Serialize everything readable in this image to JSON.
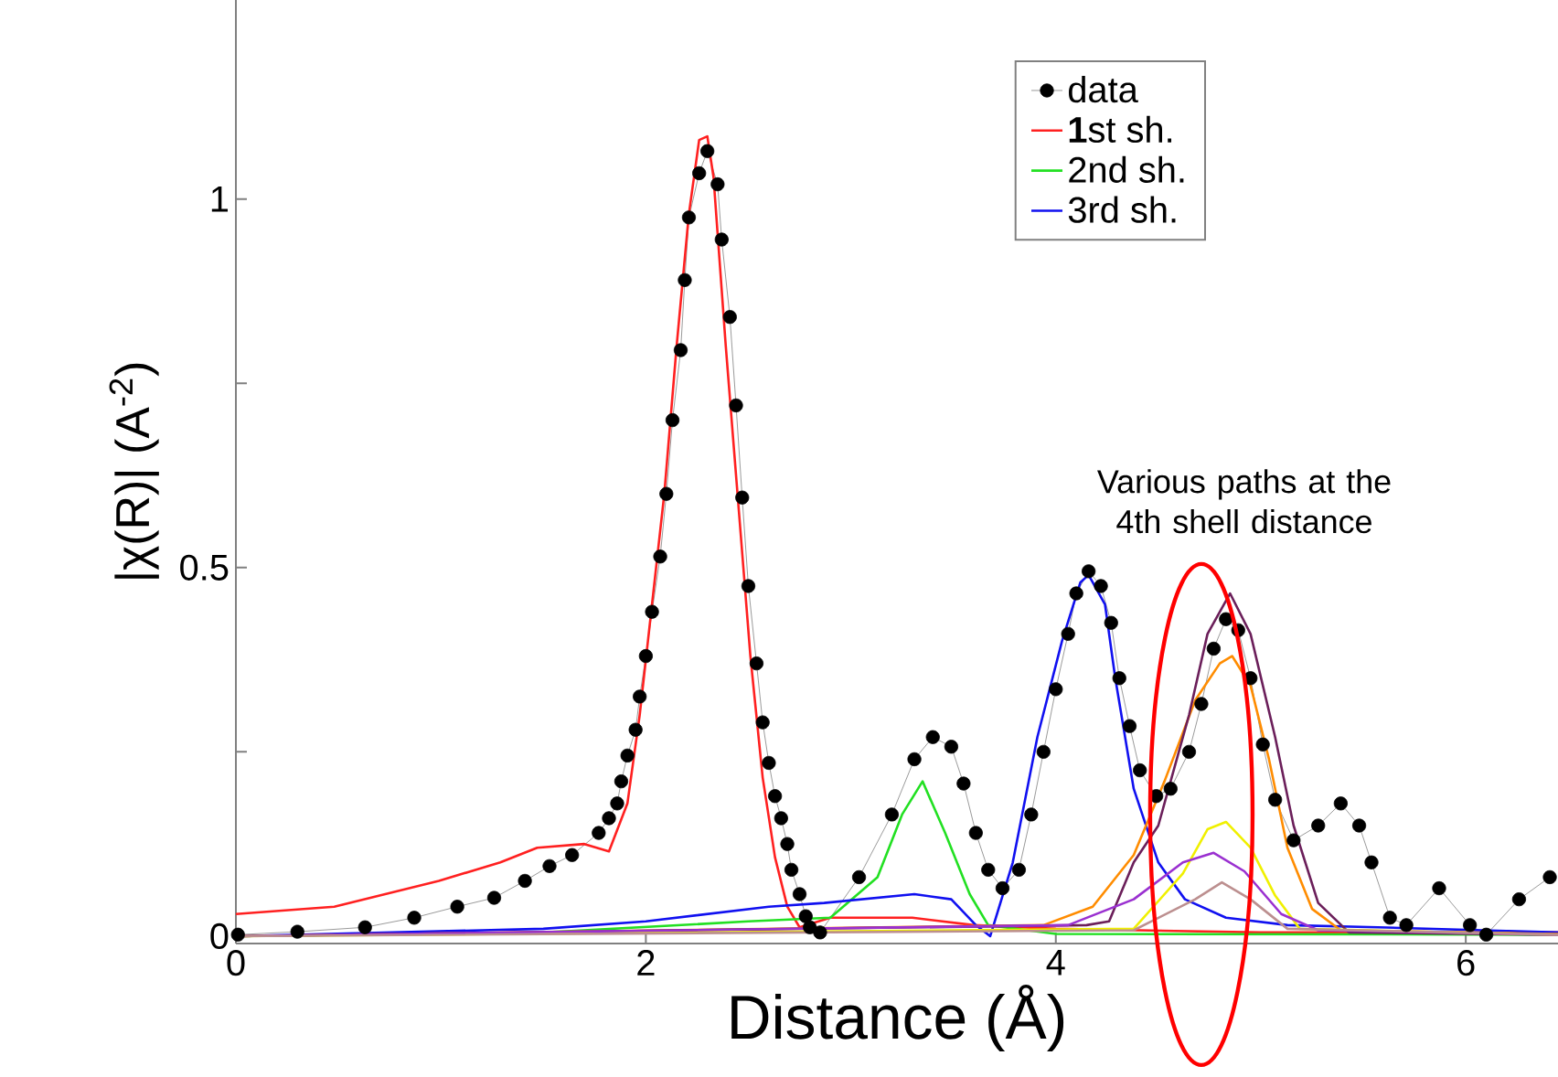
{
  "chart_data": {
    "type": "line",
    "xlabel": "Distance (Å)",
    "ylabel": "|χ(R)|  (A$^{-2}$)",
    "xlim": [
      0,
      6.45
    ],
    "ylim": [
      -0.01,
      1.27
    ],
    "xticks": [
      0,
      2,
      4,
      6
    ],
    "yticks": [
      0,
      {
        "value": 0.25,
        "label": null
      },
      0.5,
      {
        "value": 0.75,
        "label": null
      },
      1
    ],
    "legend": "top right",
    "annotations": [
      "Various paths at the 4th shell distance"
    ],
    "series": [
      {
        "name": "data",
        "color": "#000000",
        "marker": "circle",
        "x": [
          0.01,
          0.3,
          0.63,
          0.87,
          1.08,
          1.26,
          1.41,
          1.53,
          1.64,
          1.77,
          1.82,
          1.86,
          1.88,
          1.91,
          1.95,
          1.97,
          2.0,
          2.03,
          2.07,
          2.1,
          2.13,
          2.17,
          2.19,
          2.21,
          2.26,
          2.3,
          2.35,
          2.37,
          2.41,
          2.44,
          2.47,
          2.5,
          2.54,
          2.57,
          2.6,
          2.63,
          2.66,
          2.69,
          2.71,
          2.75,
          2.78,
          2.8,
          2.85,
          3.04,
          3.2,
          3.31,
          3.4,
          3.49,
          3.55,
          3.61,
          3.67,
          3.74,
          3.82,
          3.88,
          3.94,
          4.0,
          4.06,
          4.1,
          4.16,
          4.22,
          4.27,
          4.31,
          4.36,
          4.41,
          4.49,
          4.56,
          4.65,
          4.71,
          4.77,
          4.83,
          4.89,
          4.95,
          5.01,
          5.07,
          5.16,
          5.28,
          5.39,
          5.48,
          5.54,
          5.63,
          5.71,
          5.87,
          6.02,
          6.1,
          6.26,
          6.41
        ],
        "values": [
          0.002,
          0.006,
          0.012,
          0.025,
          0.04,
          0.052,
          0.075,
          0.095,
          0.11,
          0.14,
          0.16,
          0.18,
          0.21,
          0.245,
          0.28,
          0.325,
          0.38,
          0.44,
          0.515,
          0.6,
          0.7,
          0.795,
          0.89,
          0.975,
          1.035,
          1.065,
          1.02,
          0.945,
          0.84,
          0.72,
          0.595,
          0.475,
          0.37,
          0.29,
          0.235,
          0.19,
          0.16,
          0.125,
          0.09,
          0.057,
          0.027,
          0.012,
          0.005,
          0.08,
          0.165,
          0.24,
          0.27,
          0.257,
          0.207,
          0.14,
          0.09,
          0.065,
          0.09,
          0.165,
          0.25,
          0.335,
          0.41,
          0.465,
          0.495,
          0.475,
          0.425,
          0.35,
          0.285,
          0.225,
          0.19,
          0.2,
          0.25,
          0.315,
          0.39,
          0.43,
          0.415,
          0.35,
          0.26,
          0.185,
          0.13,
          0.15,
          0.18,
          0.15,
          0.1,
          0.025,
          0.015,
          0.065,
          0.015,
          0.002,
          0.05,
          0.08
        ]
      },
      {
        "name": "**1**st sh.",
        "color": "#ff2020",
        "x": [
          0,
          0.48,
          0.99,
          1.29,
          1.47,
          1.7,
          1.82,
          1.91,
          1.97,
          2.03,
          2.09,
          2.15,
          2.21,
          2.26,
          2.3,
          2.33,
          2.39,
          2.45,
          2.51,
          2.57,
          2.63,
          2.69,
          2.75,
          2.9,
          3.3,
          3.6,
          4.0,
          5.0,
          6.45
        ],
        "values": [
          0.03,
          0.04,
          0.075,
          0.1,
          0.12,
          0.125,
          0.115,
          0.18,
          0.3,
          0.45,
          0.6,
          0.8,
          0.98,
          1.08,
          1.085,
          1.03,
          0.8,
          0.59,
          0.38,
          0.215,
          0.107,
          0.04,
          0.012,
          0.025,
          0.025,
          0.015,
          0.01,
          0.005,
          0.005
        ]
      },
      {
        "name": "2nd sh.",
        "color": "#22e022",
        "x": [
          0,
          1.5,
          2.5,
          2.9,
          3.13,
          3.25,
          3.35,
          3.46,
          3.58,
          3.67,
          4.0,
          6.45
        ],
        "values": [
          0,
          0.005,
          0.02,
          0.025,
          0.08,
          0.165,
          0.21,
          0.14,
          0.057,
          0.015,
          0.003,
          0.002
        ]
      },
      {
        "name": "3rd sh.",
        "color": "#1010f0",
        "x": [
          0,
          1.5,
          2.0,
          2.6,
          2.87,
          3.31,
          3.49,
          3.61,
          3.68,
          3.79,
          3.91,
          4.03,
          4.12,
          4.16,
          4.24,
          4.29,
          4.38,
          4.5,
          4.63,
          4.83,
          5.13,
          5.57,
          6.45
        ],
        "values": [
          0,
          0.01,
          0.02,
          0.04,
          0.045,
          0.057,
          0.05,
          0.015,
          0.0,
          0.1,
          0.27,
          0.4,
          0.48,
          0.49,
          0.45,
          0.35,
          0.2,
          0.1,
          0.05,
          0.025,
          0.015,
          0.012,
          0.005
        ]
      },
      {
        "color": "#ff8c00",
        "x": [
          0,
          3.94,
          4.18,
          4.38,
          4.53,
          4.68,
          4.8,
          4.86,
          4.95,
          5.04,
          5.13,
          5.25,
          5.39,
          6.45
        ],
        "values": [
          0,
          0.015,
          0.04,
          0.11,
          0.21,
          0.32,
          0.37,
          0.38,
          0.34,
          0.24,
          0.12,
          0.037,
          0.008,
          0.003
        ]
      },
      {
        "color": "#6b1f5a",
        "x": [
          0,
          4.15,
          4.26,
          4.38,
          4.5,
          4.65,
          4.74,
          4.85,
          4.95,
          5.07,
          5.16,
          5.28,
          5.43,
          6.45
        ],
        "values": [
          0,
          0.015,
          0.02,
          0.1,
          0.15,
          0.3,
          0.41,
          0.465,
          0.41,
          0.27,
          0.15,
          0.045,
          0.005,
          0.002
        ]
      },
      {
        "color": "#f0f000",
        "x": [
          0,
          4.38,
          4.62,
          4.74,
          4.83,
          4.95,
          5.07,
          5.19,
          6.45
        ],
        "values": [
          0,
          0.01,
          0.085,
          0.145,
          0.155,
          0.12,
          0.055,
          0.01,
          0.002
        ]
      },
      {
        "color": "#9a30d0",
        "x": [
          0,
          4.06,
          4.38,
          4.62,
          4.77,
          4.92,
          5.1,
          5.28,
          6.45
        ],
        "values": [
          0,
          0.015,
          0.05,
          0.1,
          0.113,
          0.088,
          0.03,
          0.008,
          0.002
        ]
      },
      {
        "color": "#bc8f8f",
        "x": [
          0,
          4.38,
          4.68,
          4.81,
          4.95,
          5.13,
          6.45
        ],
        "values": [
          0,
          0.008,
          0.05,
          0.073,
          0.05,
          0.01,
          0.002
        ]
      }
    ]
  }
}
